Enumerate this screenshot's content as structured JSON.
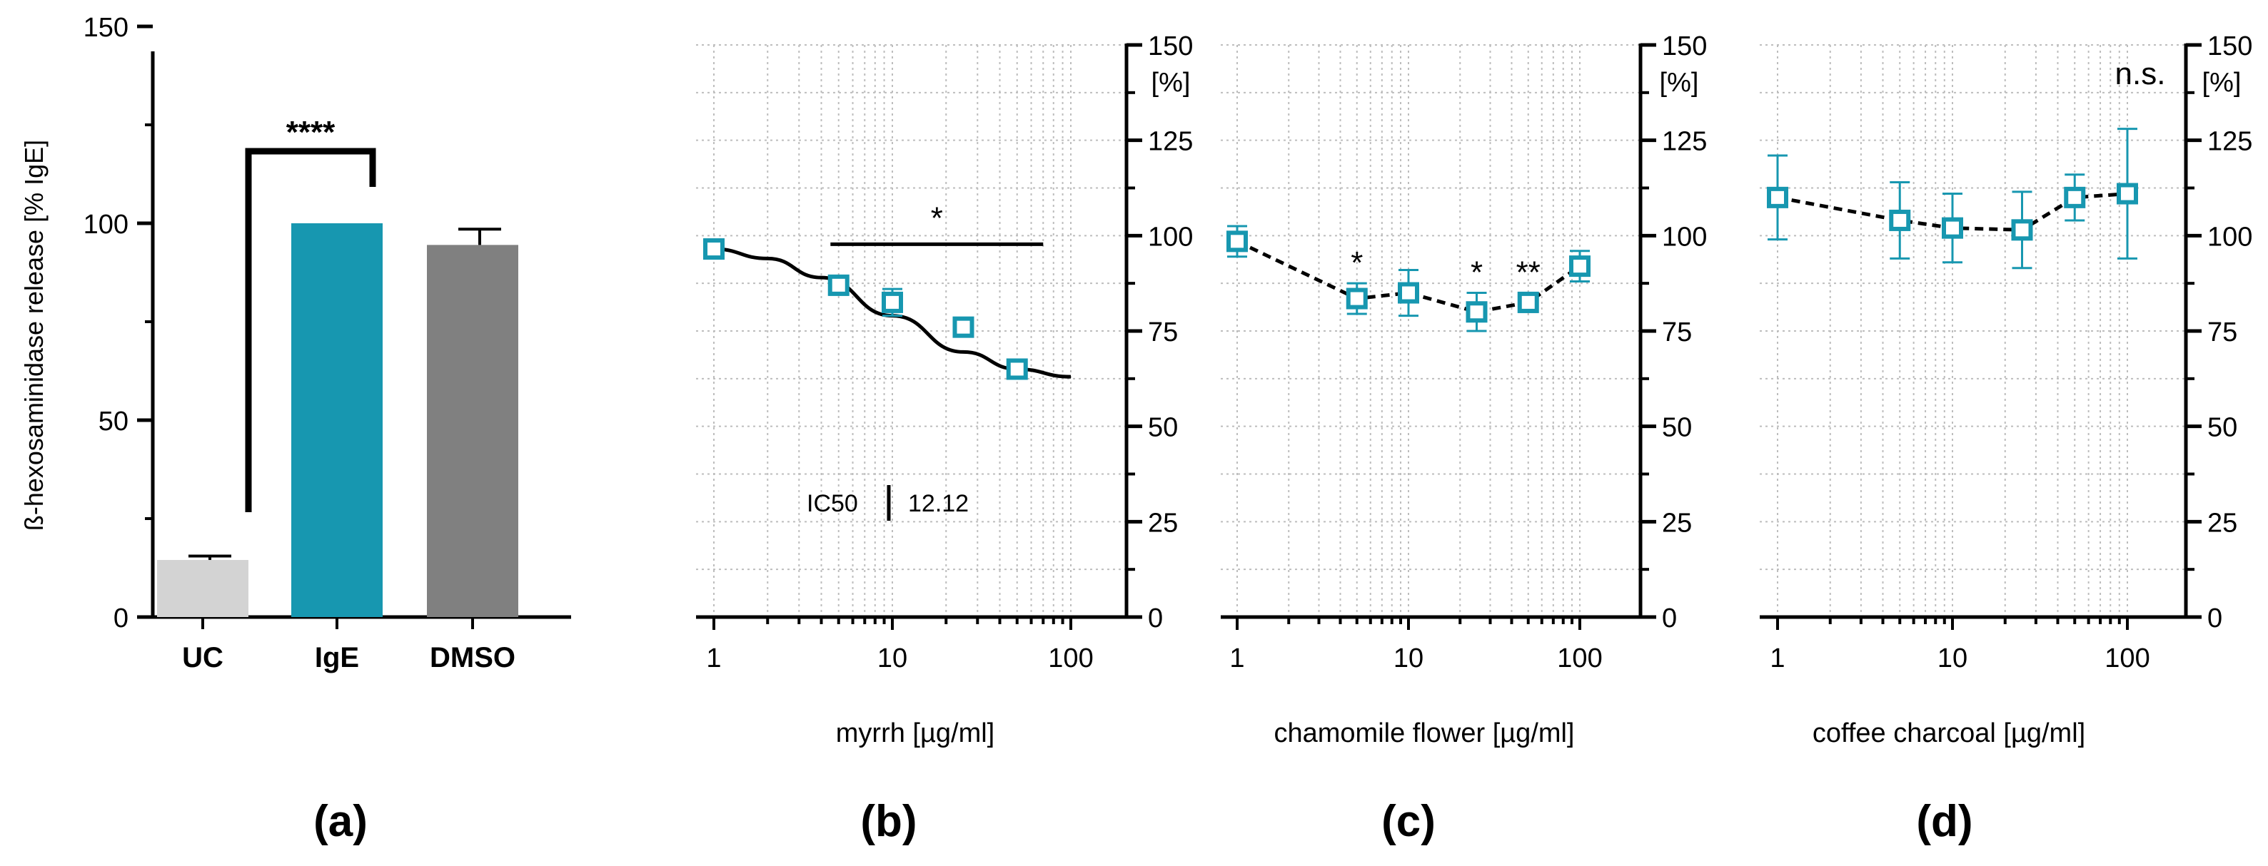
{
  "colors": {
    "uc_bar": "#d3d3d3",
    "ige_bar": "#1797b0",
    "dmso_bar": "#808080",
    "teal": "#1797b0",
    "axis": "#000000",
    "grid": "#bdbdbd"
  },
  "chart_data": [
    {
      "panel": "(a)",
      "type": "bar",
      "ylabel": "ß-hexosaminidase release [% IgE]",
      "ylim": [
        0,
        150
      ],
      "yticks": [
        "0",
        "50",
        "100",
        "150"
      ],
      "categories": [
        "UC",
        "IgE",
        "DMSO"
      ],
      "values": [
        14.5,
        100,
        94.5
      ],
      "errors": [
        1.0,
        0,
        4.0
      ],
      "significance": "****",
      "significance_between": [
        "UC",
        "IgE"
      ]
    },
    {
      "panel": "(b)",
      "type": "scatter",
      "xlabel": "myrrh [µg/ml]",
      "ylabel": "[%]",
      "x_scale": "log",
      "xlim": [
        1,
        100
      ],
      "xticks": [
        "1",
        "10",
        "100"
      ],
      "ylim": [
        0,
        150
      ],
      "yticks": [
        "0",
        "25",
        "50",
        "75",
        "100",
        "125",
        "150"
      ],
      "x": [
        1,
        5,
        10,
        25,
        50
      ],
      "y": [
        96.5,
        87,
        82.5,
        76,
        65
      ],
      "errors": [
        2.5,
        2.5,
        3.5,
        1.5,
        2.0
      ],
      "fit_curve": {
        "style": "solid",
        "x": [
          1,
          2,
          4,
          10,
          25,
          50,
          100
        ],
        "y": [
          96.5,
          94,
          89,
          79,
          69.5,
          65,
          63
        ]
      },
      "significance": "*",
      "significance_bar_x": [
        4.5,
        70
      ],
      "annotation_label": "IC50",
      "annotation_value": "12.12"
    },
    {
      "panel": "(c)",
      "type": "line",
      "xlabel": "chamomile flower [µg/ml]",
      "ylabel": "[%]",
      "x_scale": "log",
      "xlim": [
        1,
        100
      ],
      "xticks": [
        "1",
        "10",
        "100"
      ],
      "ylim": [
        0,
        150
      ],
      "yticks": [
        "0",
        "25",
        "50",
        "75",
        "100",
        "125",
        "150"
      ],
      "line_style": "dashed",
      "x": [
        1,
        5,
        10,
        25,
        50,
        100
      ],
      "y": [
        98.5,
        83.5,
        85,
        80,
        82.5,
        92
      ],
      "errors": [
        4.0,
        4.0,
        6.0,
        5.0,
        2.5,
        4.0
      ],
      "point_labels": [
        "",
        "*",
        "",
        "*",
        "**",
        ""
      ]
    },
    {
      "panel": "(d)",
      "type": "line",
      "xlabel": "coffee charcoal [µg/ml]",
      "ylabel": "[%]",
      "x_scale": "log",
      "xlim": [
        1,
        100
      ],
      "xticks": [
        "1",
        "10",
        "100"
      ],
      "ylim": [
        0,
        150
      ],
      "yticks": [
        "0",
        "25",
        "50",
        "75",
        "100",
        "125",
        "150"
      ],
      "line_style": "dashed",
      "x": [
        1,
        5,
        10,
        25,
        50,
        100
      ],
      "y": [
        110,
        104,
        102,
        101.5,
        110,
        111
      ],
      "errors": [
        11,
        10,
        9,
        10,
        6,
        17
      ],
      "significance": "n.s."
    }
  ]
}
